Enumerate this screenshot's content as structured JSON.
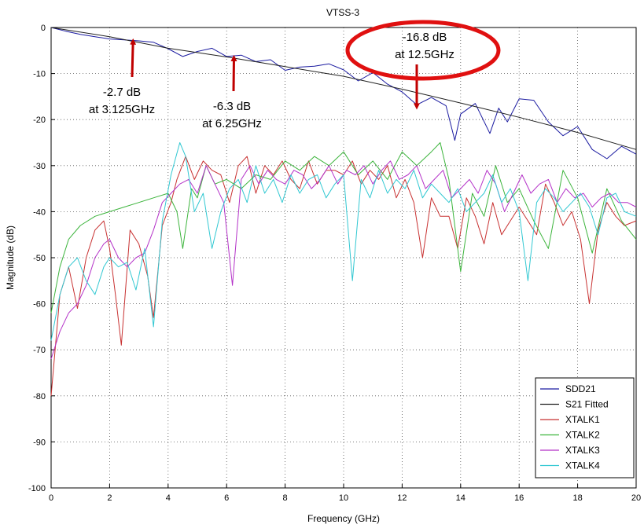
{
  "chart_data": {
    "type": "line",
    "title": "VTSS-3",
    "xlabel": "Frequency (GHz)",
    "ylabel": "Magnitude (dB)",
    "xlim": [
      0,
      20
    ],
    "ylim": [
      -100,
      0
    ],
    "xticks": [
      "0",
      "2",
      "4",
      "6",
      "8",
      "10",
      "12",
      "14",
      "16",
      "18",
      "20"
    ],
    "yticks": [
      "0",
      "-10",
      "-20",
      "-30",
      "-40",
      "-50",
      "-60",
      "-70",
      "-80",
      "-90",
      "-100"
    ],
    "grid": true,
    "legend_position": "bottom-right",
    "series": [
      {
        "name": "SDD21",
        "color": "#1a1aa0",
        "x": [
          0,
          0.5,
          1,
          1.5,
          2,
          2.5,
          3,
          3.5,
          4,
          4.5,
          5,
          5.5,
          6,
          6.5,
          7,
          7.5,
          8,
          8.5,
          9,
          9.5,
          10,
          10.5,
          11,
          11.5,
          12,
          12.5,
          13,
          13.5,
          13.8,
          14,
          14.5,
          15,
          15.3,
          15.6,
          16,
          16.5,
          17,
          17.5,
          18,
          18.5,
          19,
          19.5,
          20
        ],
        "y": [
          0,
          -0.8,
          -1.5,
          -2,
          -2.5,
          -2.7,
          -2.9,
          -3.2,
          -4.6,
          -6.3,
          -5.2,
          -4.5,
          -6.3,
          -6,
          -7.4,
          -7,
          -9.3,
          -8.6,
          -8.4,
          -7.9,
          -9.2,
          -11.6,
          -9.8,
          -12.3,
          -14,
          -16.8,
          -15.2,
          -17,
          -24.5,
          -18.8,
          -16.5,
          -23,
          -17.5,
          -20.5,
          -15.5,
          -15.8,
          -20.5,
          -23.5,
          -21.5,
          -26.5,
          -28.5,
          -25.8,
          -27.5
        ]
      },
      {
        "name": "S21 Fitted",
        "color": "#202020",
        "x": [
          0,
          2,
          4,
          6,
          8,
          10,
          12,
          14,
          16,
          18,
          20
        ],
        "y": [
          0,
          -2,
          -4.5,
          -6.4,
          -8.5,
          -10.6,
          -13.4,
          -16.4,
          -19.5,
          -22.8,
          -26.5
        ]
      },
      {
        "name": "XTALK1",
        "color": "#c83232",
        "x": [
          0,
          0.3,
          0.6,
          0.9,
          1.2,
          1.5,
          1.8,
          2,
          2.2,
          2.4,
          2.7,
          3,
          3.3,
          3.5,
          3.8,
          4.1,
          4.3,
          4.6,
          4.9,
          5.2,
          5.5,
          5.8,
          6.1,
          6.4,
          6.7,
          7,
          7.3,
          7.6,
          7.9,
          8.2,
          8.5,
          8.8,
          9.1,
          9.4,
          9.7,
          10,
          10.3,
          10.6,
          10.9,
          11.2,
          11.5,
          11.8,
          12.1,
          12.4,
          12.7,
          13,
          13.3,
          13.6,
          13.9,
          14.2,
          14.5,
          14.8,
          15.1,
          15.4,
          15.7,
          16,
          16.3,
          16.6,
          16.9,
          17.2,
          17.5,
          17.8,
          18.1,
          18.4,
          18.7,
          19,
          19.3,
          19.6,
          20
        ],
        "y": [
          -80,
          -58,
          -52,
          -61,
          -50,
          -44,
          -42,
          -48,
          -58,
          -69,
          -44,
          -47,
          -54,
          -63,
          -43,
          -38,
          -33,
          -28,
          -33,
          -29,
          -31,
          -32,
          -38,
          -30,
          -28,
          -36,
          -30,
          -32,
          -29,
          -33,
          -35,
          -29,
          -34,
          -31,
          -31,
          -32,
          -29,
          -34,
          -31,
          -33,
          -30,
          -37,
          -33,
          -38,
          -50,
          -37,
          -41,
          -41,
          -48,
          -37,
          -41,
          -47,
          -38,
          -45,
          -42,
          -39,
          -42,
          -45,
          -34,
          -38,
          -43,
          -40,
          -46,
          -60,
          -44,
          -38,
          -41,
          -43,
          -42
        ]
      },
      {
        "name": "XTALK2",
        "color": "#3cb43c",
        "x": [
          0,
          0.3,
          0.6,
          1,
          1.5,
          2,
          2.5,
          3,
          3.5,
          4,
          4.3,
          4.5,
          4.8,
          5,
          5.3,
          5.6,
          6,
          6.5,
          7,
          7.5,
          8,
          8.5,
          9,
          9.5,
          10,
          10.5,
          11,
          11.5,
          12,
          12.5,
          13,
          13.3,
          13.6,
          14,
          14.4,
          14.8,
          15.2,
          15.6,
          16,
          16.5,
          17,
          17.5,
          18,
          18.5,
          19,
          19.5,
          20
        ],
        "y": [
          -62,
          -52,
          -46,
          -43,
          -41,
          -40,
          -39,
          -38,
          -37,
          -36,
          -40,
          -48,
          -35,
          -37,
          -30,
          -34,
          -33,
          -35,
          -32,
          -33,
          -29,
          -31,
          -28,
          -30,
          -27,
          -32,
          -29,
          -33,
          -27,
          -30,
          -27,
          -25,
          -33,
          -53,
          -36,
          -41,
          -30,
          -38,
          -35,
          -42,
          -48,
          -31,
          -37,
          -49,
          -35,
          -42,
          -46
        ]
      },
      {
        "name": "XTALK3",
        "color": "#b432c8",
        "x": [
          0,
          0.3,
          0.6,
          0.9,
          1.2,
          1.5,
          1.8,
          2,
          2.3,
          2.6,
          2.9,
          3.2,
          3.5,
          3.8,
          4.1,
          4.4,
          4.7,
          5,
          5.3,
          5.6,
          5.9,
          6.2,
          6.5,
          6.8,
          7.1,
          7.4,
          7.7,
          8,
          8.3,
          8.6,
          8.9,
          9.2,
          9.5,
          9.8,
          10.1,
          10.4,
          10.7,
          11,
          11.3,
          11.6,
          11.9,
          12.2,
          12.5,
          12.8,
          13.1,
          13.4,
          13.7,
          14,
          14.3,
          14.6,
          14.9,
          15.2,
          15.5,
          15.8,
          16.1,
          16.4,
          16.7,
          17,
          17.3,
          17.6,
          17.9,
          18.2,
          18.5,
          18.8,
          19.1,
          19.4,
          19.7,
          20
        ],
        "y": [
          -72,
          -66,
          -62,
          -60,
          -56,
          -50,
          -47,
          -46,
          -50,
          -52,
          -50,
          -49,
          -44,
          -38,
          -36,
          -34,
          -33,
          -36,
          -30,
          -34,
          -38,
          -56,
          -33,
          -30,
          -34,
          -31,
          -33,
          -34,
          -31,
          -32,
          -35,
          -33,
          -30,
          -34,
          -31,
          -32,
          -30,
          -34,
          -31,
          -29,
          -33,
          -32,
          -30,
          -35,
          -33,
          -31,
          -37,
          -35,
          -33,
          -36,
          -31,
          -34,
          -40,
          -36,
          -32,
          -36,
          -34,
          -33,
          -38,
          -35,
          -37,
          -36,
          -39,
          -37,
          -36,
          -38,
          -38,
          -39
        ]
      },
      {
        "name": "XTALK4",
        "color": "#32c8d2",
        "x": [
          0,
          0.3,
          0.6,
          0.9,
          1.2,
          1.5,
          1.8,
          2,
          2.3,
          2.6,
          2.9,
          3.2,
          3.5,
          3.8,
          4.1,
          4.4,
          4.6,
          4.9,
          5.2,
          5.5,
          5.8,
          6.1,
          6.4,
          6.7,
          7,
          7.3,
          7.6,
          7.9,
          8.2,
          8.5,
          8.8,
          9.1,
          9.4,
          9.7,
          10,
          10.3,
          10.6,
          10.9,
          11.2,
          11.5,
          11.8,
          12.1,
          12.4,
          12.7,
          13,
          13.3,
          13.6,
          13.9,
          14.2,
          14.5,
          14.8,
          15.1,
          15.4,
          15.7,
          16,
          16.3,
          16.6,
          16.9,
          17.2,
          17.5,
          17.8,
          18.1,
          18.4,
          18.7,
          19,
          19.3,
          19.6,
          20
        ],
        "y": [
          -68,
          -58,
          -52,
          -50,
          -55,
          -58,
          -52,
          -50,
          -52,
          -51,
          -57,
          -48,
          -65,
          -42,
          -32,
          -25,
          -28,
          -40,
          -36,
          -48,
          -40,
          -35,
          -33,
          -38,
          -30,
          -36,
          -33,
          -38,
          -32,
          -36,
          -33,
          -32,
          -37,
          -34,
          -32,
          -55,
          -33,
          -37,
          -31,
          -36,
          -33,
          -35,
          -31,
          -37,
          -34,
          -36,
          -38,
          -35,
          -40,
          -38,
          -36,
          -32,
          -38,
          -35,
          -40,
          -55,
          -38,
          -35,
          -37,
          -40,
          -38,
          -36,
          -39,
          -45,
          -37,
          -36,
          -40,
          -41
        ]
      }
    ],
    "annotations": [
      {
        "line1": "-2.7 dB",
        "line2": "at 3.125GHz",
        "x": 2.8,
        "y": -2.7
      },
      {
        "line1": "-6.3 dB",
        "line2": "at 6.25GHz",
        "x": 6.25,
        "y": -6.3
      },
      {
        "line1": "-16.8 dB",
        "line2": "at 12.5GHz",
        "x": 12.5,
        "y": -16.8
      }
    ],
    "annotation_color": "#c00000"
  }
}
